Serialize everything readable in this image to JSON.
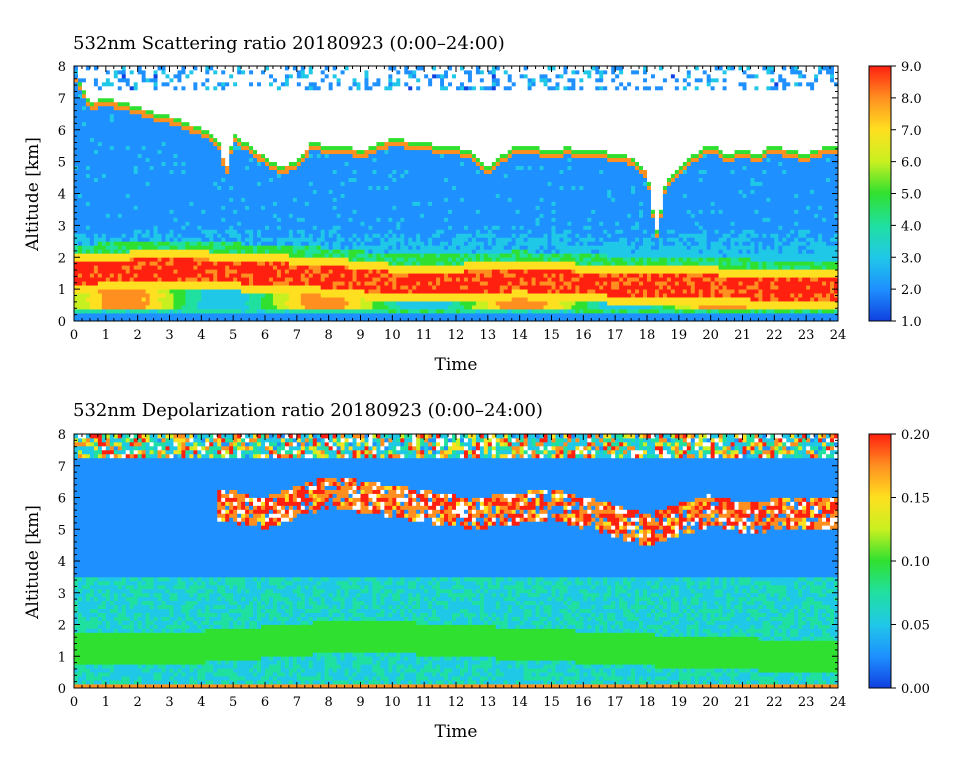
{
  "chart_data": [
    {
      "type": "heatmap",
      "title": "532nm Scattering ratio  20180923 (0:00–24:00)",
      "xlabel": "Time",
      "ylabel": "Altitude [km]",
      "x_ticks": [
        "0",
        "1",
        "2",
        "3",
        "4",
        "5",
        "6",
        "7",
        "8",
        "9",
        "10",
        "11",
        "12",
        "13",
        "14",
        "15",
        "16",
        "17",
        "18",
        "19",
        "20",
        "21",
        "22",
        "23",
        "24"
      ],
      "y_ticks": [
        "0",
        "1",
        "2",
        "3",
        "4",
        "5",
        "6",
        "7",
        "8"
      ],
      "xlim": [
        0,
        24
      ],
      "ylim": [
        0,
        8
      ],
      "colorbar": {
        "ticks": [
          "1.0",
          "2.0",
          "3.0",
          "4.0",
          "5.0",
          "6.0",
          "7.0",
          "8.0",
          "9.0"
        ],
        "range": [
          1.0,
          9.0
        ]
      },
      "colormap": [
        "#1040e0",
        "#1e90ff",
        "#20c8e8",
        "#20e0a0",
        "#30e030",
        "#c8f020",
        "#ffe020",
        "#ff9020",
        "#ff2010"
      ],
      "above_max_color": "#ffffff",
      "features": [
        {
          "kind": "cloud_base",
          "time": [
            0,
            0.5,
            1,
            1.5,
            2,
            2.5,
            3,
            3.5,
            4,
            4.5,
            4.8,
            5,
            5.5,
            6,
            6.5,
            7,
            7.5,
            8,
            8.5,
            9,
            9.5,
            10,
            10.5,
            11,
            11.5,
            12,
            12.5,
            13,
            13.5,
            14,
            14.5,
            15,
            15.5,
            16,
            16.5,
            17,
            17.5,
            18,
            18.3,
            18.6,
            19,
            19.5,
            20,
            20.5,
            21,
            21.5,
            22,
            22.5,
            23,
            23.5,
            24
          ],
          "altitude_km": [
            7.6,
            6.6,
            6.8,
            6.6,
            6.5,
            6.3,
            6.2,
            6.0,
            5.8,
            5.5,
            4.6,
            5.6,
            5.3,
            4.9,
            4.6,
            4.8,
            5.4,
            5.2,
            5.3,
            5.1,
            5.3,
            5.5,
            5.4,
            5.4,
            5.2,
            5.2,
            5.1,
            4.6,
            5.0,
            5.3,
            5.2,
            5.1,
            5.2,
            5.1,
            5.1,
            5.0,
            4.9,
            4.5,
            2.5,
            4.2,
            4.6,
            5.0,
            5.3,
            5.0,
            5.1,
            5.0,
            5.3,
            5.1,
            5.0,
            5.2,
            5.2
          ]
        },
        {
          "kind": "aerosol_layer",
          "time": [
            0,
            2,
            4,
            6,
            8,
            10,
            12,
            14,
            16,
            18,
            20,
            22,
            24
          ],
          "altitude_km": [
            1.5,
            1.6,
            1.6,
            1.5,
            1.4,
            1.2,
            1.2,
            1.3,
            1.2,
            1.1,
            1.1,
            1.0,
            1.0
          ],
          "peak_value": 8.5
        }
      ]
    },
    {
      "type": "heatmap",
      "title": "532nm Depolarization ratio  20180923 (0:00–24:00)",
      "xlabel": "Time",
      "ylabel": "Altitude [km]",
      "x_ticks": [
        "0",
        "1",
        "2",
        "3",
        "4",
        "5",
        "6",
        "7",
        "8",
        "9",
        "10",
        "11",
        "12",
        "13",
        "14",
        "15",
        "16",
        "17",
        "18",
        "19",
        "20",
        "21",
        "22",
        "23",
        "24"
      ],
      "y_ticks": [
        "0",
        "1",
        "2",
        "3",
        "4",
        "5",
        "6",
        "7",
        "8"
      ],
      "xlim": [
        0,
        24
      ],
      "ylim": [
        0,
        8
      ],
      "colorbar": {
        "ticks": [
          "0.00",
          "0.05",
          "0.10",
          "0.15",
          "0.20"
        ],
        "range": [
          0.0,
          0.2
        ]
      },
      "colormap": [
        "#1040e0",
        "#1e90ff",
        "#20c8e8",
        "#20e0a0",
        "#30e030",
        "#c8f020",
        "#ffe020",
        "#ff9020",
        "#ff2010"
      ],
      "above_max_color": "#ffffff",
      "features": [
        {
          "kind": "aerosol_layer",
          "time": [
            0,
            4,
            8,
            10,
            12,
            16,
            20,
            24
          ],
          "altitude_km": [
            1.2,
            1.3,
            1.6,
            1.6,
            1.5,
            1.3,
            1.1,
            1.0
          ],
          "peak_value": 0.1
        },
        {
          "kind": "high_depol_cloud_band",
          "time": [
            4.6,
            6,
            8,
            12.5,
            15,
            18,
            20,
            21,
            23,
            24
          ],
          "altitude_km": [
            5.8,
            5.5,
            6.2,
            5.5,
            5.8,
            5.0,
            5.6,
            5.4,
            5.5,
            5.5
          ],
          "peak_value": 0.2
        }
      ]
    }
  ]
}
